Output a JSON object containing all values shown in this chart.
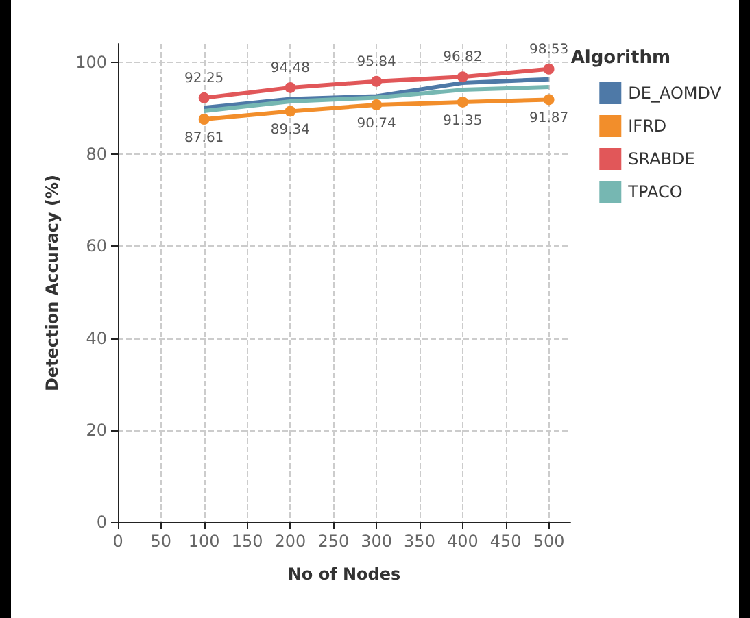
{
  "chart_data": {
    "type": "line",
    "xlabel": "No of Nodes",
    "ylabel": "Detection Accuracy (%)",
    "legend_title": "Algorithm",
    "legend": "right",
    "grid": true,
    "line_style": "solid",
    "x": [
      100,
      200,
      300,
      400,
      500
    ],
    "xlim": [
      0,
      525
    ],
    "xticks": [
      0,
      50,
      100,
      150,
      200,
      250,
      300,
      350,
      400,
      450,
      500
    ],
    "ylim": [
      0,
      104
    ],
    "yticks": [
      0,
      20,
      40,
      60,
      80,
      100
    ],
    "series": [
      {
        "name": "DE_AOMDV",
        "color": "#4e79a7",
        "marker": "none",
        "values": [
          90.1,
          92.0,
          92.6,
          95.5,
          96.3
        ]
      },
      {
        "name": "IFRD",
        "color": "#f28e2b",
        "marker": "circle",
        "values": [
          87.61,
          89.34,
          90.74,
          91.35,
          91.87
        ],
        "value_labels": [
          "87.61",
          "89.34",
          "90.74",
          "91.35",
          "91.87"
        ]
      },
      {
        "name": "SRABDE",
        "color": "#e15759",
        "marker": "circle",
        "values": [
          92.25,
          94.48,
          95.84,
          96.82,
          98.53
        ],
        "value_labels": [
          "92.25",
          "94.48",
          "95.84",
          "96.82",
          "98.53"
        ]
      },
      {
        "name": "TPACO",
        "color": "#76b7b2",
        "marker": "none",
        "values": [
          89.4,
          91.5,
          92.3,
          94.0,
          94.6
        ]
      }
    ]
  }
}
